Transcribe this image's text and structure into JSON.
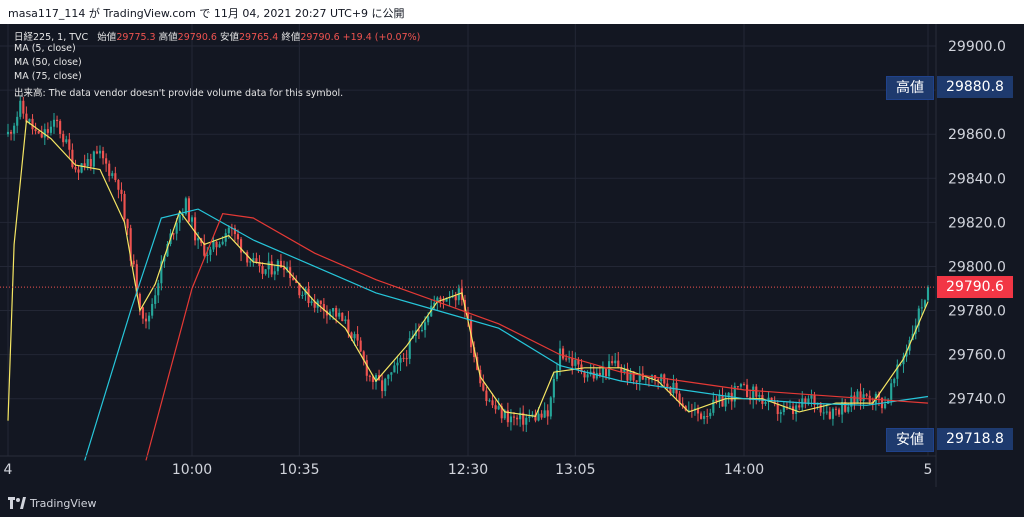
{
  "header": {
    "caption": "masa117_114 が TradingView.com で 11月 04, 2021 20:27 UTC+9 に公開"
  },
  "legend": {
    "symbol": "日経225, 1, TVC",
    "open_label": "始値",
    "open": "29775.3",
    "high_label": "高値",
    "high": "29790.6",
    "low_label": "安値",
    "low": "29765.4",
    "close_label": "終値",
    "close": "29790.6",
    "change": "+19.4 (+0.07%)",
    "ma1": "MA (5, close)",
    "ma2": "MA (50, close)",
    "ma3": "MA (75, close)",
    "volume": "出来高: The data vendor doesn't provide volume data for this symbol."
  },
  "price_tags": {
    "high_label": "高値",
    "high_value": "29880.8",
    "low_label": "安値",
    "low_value": "29718.8",
    "last_value": "29790.6"
  },
  "footer": {
    "brand": "TradingView"
  },
  "colors": {
    "up": "#26a69a",
    "down": "#ef5350",
    "ma5": "#f5e663",
    "ma50": "#26c6da",
    "ma75": "#e53935",
    "bg": "#131722",
    "grid": "#232735"
  },
  "chart_data": {
    "type": "candlestick",
    "title": "日経225, 1, TVC",
    "ylim": [
      29714,
      29910
    ],
    "y_ticks": [
      29740,
      29760,
      29780,
      29800,
      29820,
      29840,
      29860,
      29880,
      29900
    ],
    "y_tick_labels": [
      "29740.0",
      "29760.0",
      "29780.0",
      "29800.0",
      "29820.0",
      "29840.0",
      "29860.0",
      "29880.0",
      "29900.0"
    ],
    "x_ticks": [
      {
        "label": "4",
        "idx": 0
      },
      {
        "label": "10:00",
        "idx": 60
      },
      {
        "label": "10:35",
        "idx": 95
      },
      {
        "label": "12:30",
        "idx": 150
      },
      {
        "label": "13:05",
        "idx": 185
      },
      {
        "label": "14:00",
        "idx": 240
      },
      {
        "label": "5",
        "idx": 300
      }
    ],
    "bar_count": 301,
    "last_price": 29790.6,
    "high": 29880.8,
    "low": 29718.8,
    "close_path": [
      [
        0,
        29860
      ],
      [
        4,
        29872
      ],
      [
        10,
        29858
      ],
      [
        16,
        29865
      ],
      [
        22,
        29845
      ],
      [
        30,
        29850
      ],
      [
        36,
        29838
      ],
      [
        42,
        29790
      ],
      [
        45,
        29773
      ],
      [
        50,
        29800
      ],
      [
        55,
        29822
      ],
      [
        58,
        29828
      ],
      [
        62,
        29810
      ],
      [
        66,
        29806
      ],
      [
        72,
        29818
      ],
      [
        78,
        29805
      ],
      [
        82,
        29797
      ],
      [
        90,
        29802
      ],
      [
        96,
        29788
      ],
      [
        102,
        29782
      ],
      [
        106,
        29780
      ],
      [
        112,
        29770
      ],
      [
        118,
        29750
      ],
      [
        122,
        29745
      ],
      [
        128,
        29756
      ],
      [
        134,
        29772
      ],
      [
        138,
        29782
      ],
      [
        144,
        29788
      ],
      [
        148,
        29787
      ],
      [
        152,
        29760
      ],
      [
        156,
        29740
      ],
      [
        160,
        29734
      ],
      [
        166,
        29730
      ],
      [
        172,
        29732
      ],
      [
        176,
        29732
      ],
      [
        180,
        29762
      ],
      [
        186,
        29754
      ],
      [
        192,
        29750
      ],
      [
        198,
        29756
      ],
      [
        204,
        29748
      ],
      [
        210,
        29752
      ],
      [
        216,
        29746
      ],
      [
        222,
        29734
      ],
      [
        226,
        29733
      ],
      [
        232,
        29738
      ],
      [
        238,
        29744
      ],
      [
        244,
        29742
      ],
      [
        250,
        29735
      ],
      [
        256,
        29734
      ],
      [
        262,
        29740
      ],
      [
        268,
        29734
      ],
      [
        274,
        29738
      ],
      [
        280,
        29742
      ],
      [
        286,
        29738
      ],
      [
        290,
        29752
      ],
      [
        296,
        29775
      ],
      [
        300,
        29790.6
      ]
    ],
    "ma_series": [
      {
        "period": 5,
        "points": [
          [
            0,
            29730
          ],
          [
            2,
            29810
          ],
          [
            6,
            29866
          ],
          [
            14,
            29858
          ],
          [
            22,
            29846
          ],
          [
            30,
            29844
          ],
          [
            38,
            29820
          ],
          [
            43,
            29780
          ],
          [
            48,
            29792
          ],
          [
            56,
            29825
          ],
          [
            64,
            29810
          ],
          [
            72,
            29814
          ],
          [
            80,
            29802
          ],
          [
            90,
            29800
          ],
          [
            100,
            29784
          ],
          [
            110,
            29772
          ],
          [
            120,
            29748
          ],
          [
            130,
            29764
          ],
          [
            140,
            29784
          ],
          [
            148,
            29788
          ],
          [
            154,
            29750
          ],
          [
            162,
            29734
          ],
          [
            172,
            29732
          ],
          [
            178,
            29752
          ],
          [
            188,
            29754
          ],
          [
            200,
            29754
          ],
          [
            212,
            29748
          ],
          [
            222,
            29734
          ],
          [
            234,
            29740
          ],
          [
            246,
            29740
          ],
          [
            258,
            29734
          ],
          [
            270,
            29738
          ],
          [
            282,
            29738
          ],
          [
            292,
            29758
          ],
          [
            300,
            29784
          ]
        ]
      },
      {
        "period": 50,
        "points": [
          [
            25,
            29712
          ],
          [
            40,
            29780
          ],
          [
            50,
            29822
          ],
          [
            62,
            29826
          ],
          [
            80,
            29812
          ],
          [
            100,
            29800
          ],
          [
            120,
            29788
          ],
          [
            140,
            29780
          ],
          [
            160,
            29772
          ],
          [
            180,
            29755
          ],
          [
            200,
            29748
          ],
          [
            220,
            29744
          ],
          [
            240,
            29740
          ],
          [
            260,
            29738
          ],
          [
            280,
            29737
          ],
          [
            300,
            29741
          ]
        ]
      },
      {
        "period": 75,
        "points": [
          [
            45,
            29712
          ],
          [
            60,
            29790
          ],
          [
            70,
            29824
          ],
          [
            80,
            29822
          ],
          [
            100,
            29806
          ],
          [
            120,
            29794
          ],
          [
            140,
            29784
          ],
          [
            160,
            29774
          ],
          [
            180,
            29760
          ],
          [
            200,
            29752
          ],
          [
            220,
            29748
          ],
          [
            240,
            29744
          ],
          [
            260,
            29742
          ],
          [
            280,
            29740
          ],
          [
            300,
            29738
          ]
        ]
      }
    ]
  }
}
